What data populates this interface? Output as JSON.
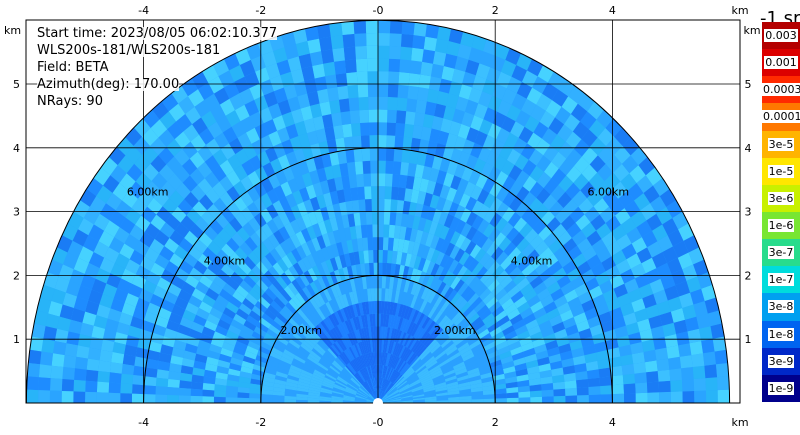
{
  "info": {
    "start_time": "Start time: 2023/08/05 06:02:10.377",
    "instrument": "WLS200s-181/WLS200s-181",
    "field": "Field: BETA",
    "azimuth": "Azimuth(deg): 170.00",
    "nrays": "NRays: 90"
  },
  "axes": {
    "unit": "km",
    "x_ticks": [
      "-4",
      "-2",
      "-0",
      "2",
      "4"
    ],
    "y_ticks": [
      "1",
      "2",
      "3",
      "4",
      "5"
    ],
    "y_values": [
      1,
      2,
      3,
      4,
      5
    ],
    "x_values": [
      -4,
      -2,
      0,
      2,
      4
    ],
    "x_range": [
      -6,
      6
    ],
    "y_range": [
      0,
      6
    ],
    "x_labels_side": "top and bottom",
    "y_labels_side": "left and right"
  },
  "range_rings": [
    {
      "radius_km": 2,
      "label": "2.00km"
    },
    {
      "radius_km": 4,
      "label": "4.00km"
    },
    {
      "radius_km": 6,
      "label": "6.00km"
    }
  ],
  "colorbar": {
    "unit_label": "-1 sr",
    "labels": [
      "0.003",
      "0.001",
      "0.0003",
      "0.0001",
      "3e-5",
      "1e-5",
      "3e-6",
      "1e-6",
      "3e-7",
      "1e-7",
      "3e-8",
      "1e-8",
      "3e-9",
      "1e-9"
    ],
    "colors": [
      "#b40000",
      "#dc0000",
      "#ff2a00",
      "#ff7800",
      "#ffb400",
      "#ffe600",
      "#c8f000",
      "#78e632",
      "#28dc8c",
      "#00dcdc",
      "#00a0f0",
      "#0064f0",
      "#0028c8",
      "#00008c"
    ]
  },
  "colors": {
    "field_base": "#2aa4ff",
    "field_dark": "#1e78ff",
    "field_light": "#3cc8ff",
    "grid": "#000000"
  }
}
